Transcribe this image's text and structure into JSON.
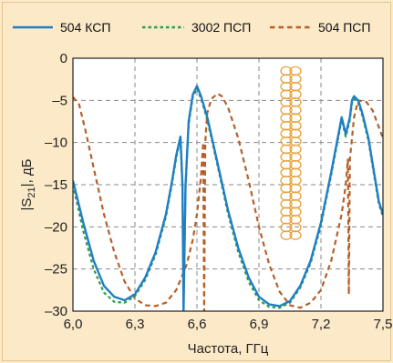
{
  "chart_data": {
    "type": "line",
    "xlabel": "Частота, ГГц",
    "ylabel_parts": {
      "prefix": "|S",
      "sub": "21",
      "suffix": "|, дБ"
    },
    "xlim": [
      6.0,
      7.5
    ],
    "ylim": [
      -30,
      0
    ],
    "xticks": [
      6.0,
      6.3,
      6.6,
      6.9,
      7.2,
      7.5
    ],
    "xtick_labels": [
      "6,0",
      "6,3",
      "6,6",
      "6,9",
      "7,2",
      "7,5"
    ],
    "yticks": [
      0,
      -5,
      -10,
      -15,
      -20,
      -25,
      -30
    ],
    "ytick_labels": [
      "0",
      "–5",
      "–10",
      "–15",
      "–20",
      "–25",
      "–30"
    ],
    "grid": true,
    "legend_position": "top",
    "series": [
      {
        "name": "504 КСП",
        "color": "#1f7fc4",
        "style": "solid",
        "x": [
          6.0,
          6.05,
          6.1,
          6.15,
          6.2,
          6.25,
          6.3,
          6.35,
          6.4,
          6.45,
          6.48,
          6.5,
          6.52,
          6.53,
          6.535,
          6.545,
          6.56,
          6.58,
          6.6,
          6.62,
          6.65,
          6.7,
          6.75,
          6.8,
          6.85,
          6.9,
          6.95,
          7.0,
          7.05,
          7.1,
          7.15,
          7.2,
          7.25,
          7.3,
          7.32,
          7.34,
          7.35,
          7.36,
          7.38,
          7.4,
          7.43,
          7.46,
          7.48,
          7.5
        ],
        "y": [
          -14.5,
          -19.5,
          -24.0,
          -27.0,
          -28.3,
          -28.7,
          -28.0,
          -26.0,
          -23.0,
          -18.5,
          -14.5,
          -11.5,
          -9.3,
          -15.0,
          -30.0,
          -15.0,
          -7.5,
          -4.3,
          -3.3,
          -4.5,
          -7.0,
          -12.5,
          -18.0,
          -22.5,
          -26.0,
          -28.3,
          -29.2,
          -29.4,
          -28.8,
          -27.0,
          -24.0,
          -19.5,
          -13.5,
          -7.0,
          -9.0,
          -7.0,
          -5.0,
          -4.5,
          -5.0,
          -6.5,
          -9.5,
          -14.0,
          -17.0,
          -18.5
        ]
      },
      {
        "name": "3002 ПСП",
        "color": "#2f9e4a",
        "style": "dotted",
        "x": [
          6.0,
          6.05,
          6.1,
          6.15,
          6.2,
          6.25,
          6.3,
          6.35,
          6.4,
          6.45,
          6.48,
          6.5,
          6.52,
          6.53,
          6.535,
          6.545,
          6.56,
          6.58,
          6.6,
          6.62,
          6.65,
          6.7,
          6.75,
          6.8,
          6.85,
          6.9,
          6.95,
          7.0,
          7.05,
          7.1,
          7.15,
          7.2,
          7.25,
          7.3,
          7.32,
          7.34,
          7.35,
          7.36,
          7.38,
          7.4,
          7.43,
          7.46,
          7.48,
          7.5
        ],
        "y": [
          -15.0,
          -20.5,
          -25.0,
          -27.8,
          -28.9,
          -29.0,
          -28.2,
          -26.3,
          -23.3,
          -18.8,
          -14.8,
          -11.8,
          -9.6,
          -15.3,
          -30.0,
          -15.3,
          -7.8,
          -4.6,
          -3.6,
          -4.8,
          -7.3,
          -12.8,
          -18.4,
          -23.0,
          -26.5,
          -28.7,
          -29.5,
          -29.6,
          -29.0,
          -27.2,
          -24.3,
          -19.8,
          -13.8,
          -7.3,
          -9.3,
          -7.3,
          -5.3,
          -4.8,
          -5.3,
          -6.8,
          -9.8,
          -14.3,
          -17.3,
          -18.8
        ]
      },
      {
        "name": "504 ПСП",
        "color": "#b5602a",
        "style": "dashed",
        "x": [
          6.0,
          6.03,
          6.06,
          6.1,
          6.15,
          6.2,
          6.25,
          6.3,
          6.35,
          6.4,
          6.45,
          6.5,
          6.55,
          6.58,
          6.6,
          6.62,
          6.63,
          6.635,
          6.64,
          6.65,
          6.67,
          6.7,
          6.72,
          6.75,
          6.8,
          6.85,
          6.9,
          6.95,
          7.0,
          7.05,
          7.1,
          7.15,
          7.2,
          7.25,
          7.3,
          7.32,
          7.33,
          7.335,
          7.34,
          7.36,
          7.38,
          7.42,
          7.45,
          7.5
        ],
        "y": [
          -4.6,
          -5.5,
          -8.5,
          -13.0,
          -18.5,
          -23.0,
          -26.5,
          -28.5,
          -29.3,
          -29.4,
          -29.0,
          -27.5,
          -24.5,
          -21.5,
          -18.5,
          -14.0,
          -10.0,
          -30.0,
          -10.0,
          -6.5,
          -4.8,
          -4.2,
          -4.5,
          -5.8,
          -9.5,
          -14.5,
          -20.0,
          -24.5,
          -27.7,
          -29.3,
          -29.6,
          -29.0,
          -27.5,
          -24.0,
          -18.5,
          -15.0,
          -12.0,
          -28.0,
          -12.0,
          -7.0,
          -5.0,
          -5.2,
          -6.2,
          -9.5
        ]
      }
    ]
  }
}
